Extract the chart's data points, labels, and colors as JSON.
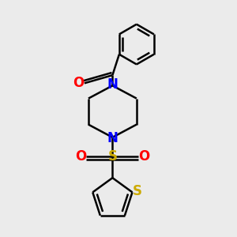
{
  "background_color": "#ebebeb",
  "bond_color": "#000000",
  "bond_width": 1.8,
  "atom_colors": {
    "N": "#0000ff",
    "O": "#ff0000",
    "S_sulfonyl": "#ccaa00",
    "S_thiophene": "#ccaa00"
  },
  "font_size_atom": 12,
  "fig_width": 3.0,
  "fig_height": 3.0,
  "dpi": 100
}
